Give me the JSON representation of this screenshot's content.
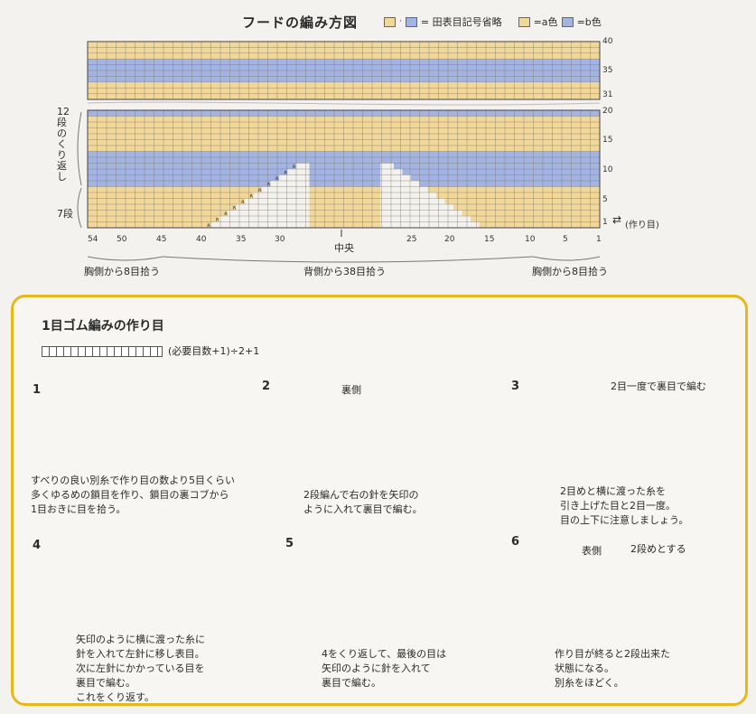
{
  "chart": {
    "title": "フードの編み方図",
    "legend": {
      "abbrev_text": "= 田表目記号省略",
      "a_text": "=a色",
      "b_text": "=b色"
    },
    "colors": {
      "a": "#f1d89a",
      "b": "#a3b4e3",
      "grid": "#7f7a6a"
    },
    "upper_bands": [
      {
        "color": "a",
        "rows": [
          38,
          40
        ]
      },
      {
        "color": "b",
        "rows": [
          34,
          37
        ]
      },
      {
        "color": "a",
        "rows": [
          31,
          33
        ]
      }
    ],
    "lower_bands": [
      {
        "color": "b",
        "rows": [
          20,
          20
        ]
      },
      {
        "color": "a",
        "rows": [
          14,
          19
        ]
      },
      {
        "color": "b",
        "rows": [
          8,
          13
        ]
      },
      {
        "color": "a",
        "rows": [
          1,
          7
        ]
      }
    ],
    "row_labels": [
      "40",
      "35",
      "31",
      "20",
      "15",
      "10",
      "5",
      "1"
    ],
    "col_labels": [
      "54",
      "50",
      "45",
      "40",
      "35",
      "30",
      "25",
      "20",
      "15",
      "10",
      "5",
      "1"
    ],
    "cast_on_label": "(作り目)",
    "center_label": "中央",
    "left_pickup": "胸側から8目拾う",
    "center_pickup": "背側から38目拾う",
    "right_pickup": "胸側から8目拾う",
    "repeat_label": "12段のくり返し",
    "seven_rows": "7段"
  },
  "panel": {
    "title": "1目ゴム編みの作り目",
    "formula": "(必要目数+1)÷2+1",
    "steps": [
      {
        "num": "1",
        "caption": "すべりの良い別糸で作り目の数より5目くらい\n多くゆるめの鎖目を作り、鎖目の裏コブから\n1目おきに目を拾う。"
      },
      {
        "num": "2",
        "label": "裏側",
        "caption": "2段編んで右の針を矢印の\nように入れて裏目で編む。"
      },
      {
        "num": "3",
        "label": "2目一度で裏目で編む",
        "caption": "2目めと横に渡った糸を\n引き上げた目と2目一度。\n目の上下に注意しましょう。"
      },
      {
        "num": "4",
        "caption": "矢印のように横に渡った糸に\n針を入れて左針に移し表目。\n次に左針にかかっている目を\n裏目で編む。\nこれをくり返す。"
      },
      {
        "num": "5",
        "caption": "4をくり返して、最後の目は\n矢印のように針を入れて\n裏目で編む。"
      },
      {
        "num": "6",
        "label": "表側",
        "label2": "2段めとする",
        "caption": "作り目が終ると2段出来た\n状態になる。\n別糸をほどく。"
      }
    ]
  }
}
